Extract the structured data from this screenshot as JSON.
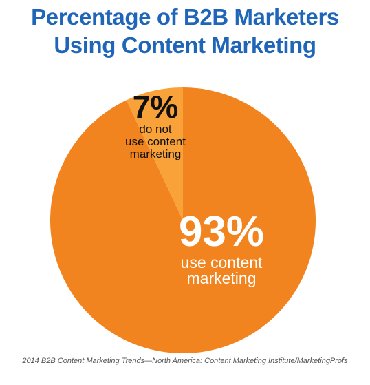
{
  "colors": {
    "title": "#1f66b8",
    "major_slice": "#f2841f",
    "minor_slice": "#f9a23a",
    "major_label": "#ffffff",
    "minor_label": "#111111",
    "source": "#555555"
  },
  "title": {
    "line1": "Percentage of B2B Marketers",
    "line2": "Using Content Marketing"
  },
  "chart_data": {
    "type": "pie",
    "title": "Percentage of B2B Marketers Using Content Marketing",
    "slices": [
      {
        "value": 93,
        "value_label": "93%",
        "label_lines": [
          "use content",
          "marketing"
        ],
        "color": "#f2841f",
        "label_color": "#ffffff"
      },
      {
        "value": 7,
        "value_label": "7%",
        "label_lines": [
          "do not",
          "use content",
          "marketing"
        ],
        "color": "#f9a23a",
        "label_color": "#111111"
      }
    ]
  },
  "source": "2014 B2B Content Marketing Trends—North America: Content Marketing Institute/MarketingProfs"
}
